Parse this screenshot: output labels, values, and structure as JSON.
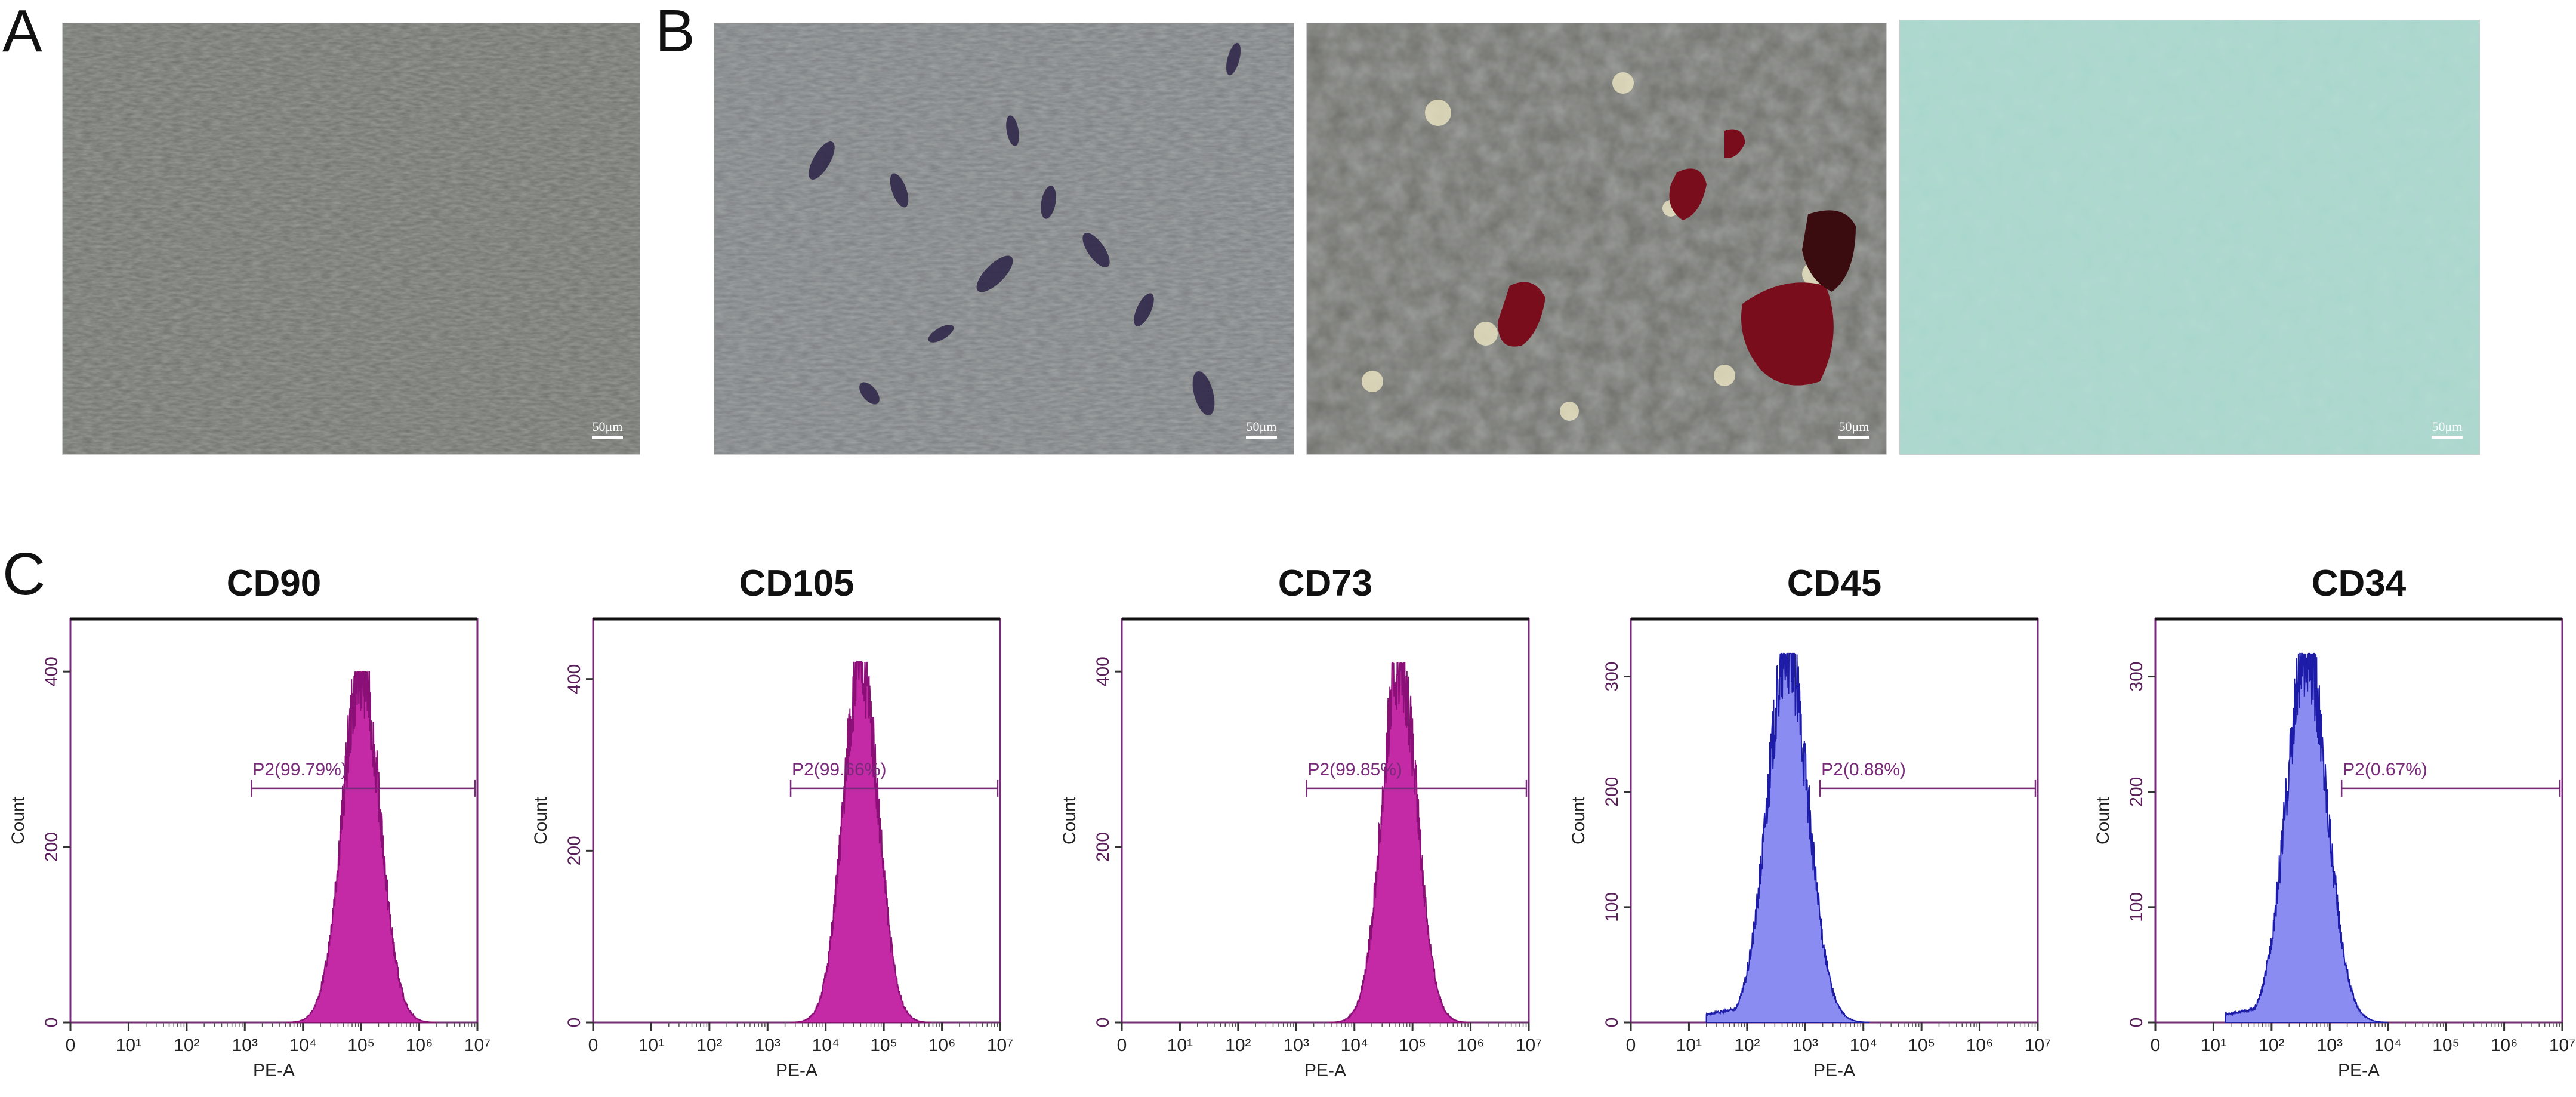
{
  "panels": {
    "A": {
      "letter": "A",
      "images": [
        {
          "kind": "micrograph-phase-contrast",
          "scale_label": "50μm"
        }
      ]
    },
    "B": {
      "letter": "B",
      "images": [
        {
          "kind": "micrograph-purple-stain",
          "scale_label": "50μm"
        },
        {
          "kind": "micrograph-red-stain",
          "scale_label": "50μm"
        },
        {
          "kind": "micrograph-blue-green-stain",
          "scale_label": "50μm"
        }
      ]
    },
    "C": {
      "letter": "C"
    }
  },
  "colors": {
    "magenta": "#c42aa6",
    "blue": "#8a8cf2",
    "blue_line": "#1c1ca8",
    "axis_label": "#5a1f5a",
    "gate": "#7a2a7a"
  },
  "chart_data": [
    {
      "type": "area",
      "title": "CD90",
      "xlabel": "PE-A",
      "ylabel": "Count",
      "x_scale": "log",
      "xlim": [
        0,
        10000000
      ],
      "ylim": [
        0,
        460
      ],
      "yticks": [
        0,
        200,
        400
      ],
      "xticks": [
        "0",
        "10¹",
        "10²",
        "10³",
        "10⁴",
        "10⁵",
        "10⁶",
        "10⁷"
      ],
      "color": "magenta",
      "peak_x": 100000,
      "peak_count": 400,
      "spread_decades": 0.32,
      "gate": {
        "label": "P2(99.79%)",
        "from": 1300,
        "to": 10000000
      }
    },
    {
      "type": "area",
      "title": "CD105",
      "xlabel": "PE-A",
      "ylabel": "Count",
      "x_scale": "log",
      "xlim": [
        0,
        10000000
      ],
      "ylim": [
        0,
        470
      ],
      "yticks": [
        0,
        200,
        400
      ],
      "xticks": [
        "0",
        "10¹",
        "10²",
        "10³",
        "10⁴",
        "10⁵",
        "10⁶",
        "10⁷"
      ],
      "color": "magenta",
      "peak_x": 40000,
      "peak_count": 420,
      "spread_decades": 0.3,
      "gate": {
        "label": "P2(99.66%)",
        "from": 2500,
        "to": 10000000
      }
    },
    {
      "type": "area",
      "title": "CD73",
      "xlabel": "PE-A",
      "ylabel": "Count",
      "x_scale": "log",
      "xlim": [
        0,
        10000000
      ],
      "ylim": [
        0,
        460
      ],
      "yticks": [
        0,
        200,
        400
      ],
      "xticks": [
        "0",
        "10¹",
        "10²",
        "10³",
        "10⁴",
        "10⁵",
        "10⁶",
        "10⁷"
      ],
      "color": "magenta",
      "peak_x": 60000,
      "peak_count": 410,
      "spread_decades": 0.3,
      "gate": {
        "label": "P2(99.85%)",
        "from": 1500,
        "to": 10000000
      }
    },
    {
      "type": "area",
      "title": "CD45",
      "xlabel": "PE-A",
      "ylabel": "Count",
      "x_scale": "log",
      "xlim": [
        0,
        10000000
      ],
      "ylim": [
        0,
        350
      ],
      "yticks": [
        0,
        100,
        200,
        300
      ],
      "xticks": [
        "0",
        "10¹",
        "10²",
        "10³",
        "10⁴",
        "10⁵",
        "10⁶",
        "10⁷"
      ],
      "color": "blue",
      "peak_x": 500,
      "peak_count": 320,
      "spread_decades": 0.35,
      "gate": {
        "label": "P2(0.88%)",
        "from": 1800,
        "to": 10000000
      }
    },
    {
      "type": "area",
      "title": "CD34",
      "xlabel": "PE-A",
      "ylabel": "Count",
      "x_scale": "log",
      "xlim": [
        0,
        10000000
      ],
      "ylim": [
        0,
        350
      ],
      "yticks": [
        0,
        100,
        200,
        300
      ],
      "xticks": [
        "0",
        "10¹",
        "10²",
        "10³",
        "10⁴",
        "10⁵",
        "10⁶",
        "10⁷"
      ],
      "color": "blue",
      "peak_x": 400,
      "peak_count": 320,
      "spread_decades": 0.35,
      "gate": {
        "label": "P2(0.67%)",
        "from": 1600,
        "to": 10000000
      }
    }
  ]
}
